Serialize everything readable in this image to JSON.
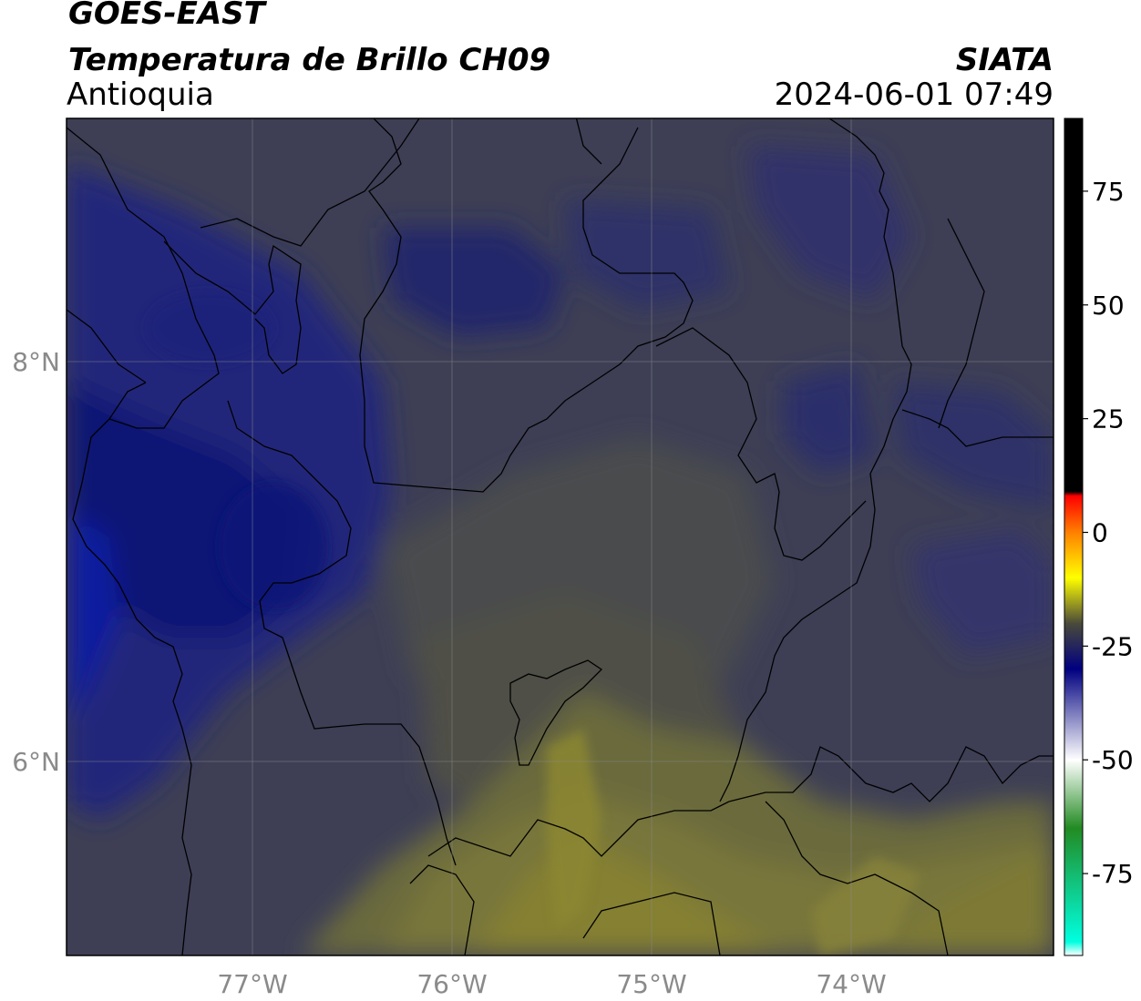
{
  "header": {
    "satellite": "GOES-EAST",
    "product": "Temperatura de Brillo CH09",
    "region": "Antioquia",
    "agency": "SIATA",
    "timestamp": "2024-06-01 07:49"
  },
  "map": {
    "lon_ticks": [
      "77°W",
      "76°W",
      "75°W",
      "74°W"
    ],
    "lat_ticks": [
      "8°N",
      "6°N"
    ]
  },
  "colorbar": {
    "tick_labels": [
      "75",
      "50",
      "25",
      "0",
      "-25",
      "-50",
      "-75"
    ],
    "tick_values": [
      75,
      50,
      25,
      0,
      -25,
      -50,
      -75
    ],
    "range": [
      -93,
      91
    ],
    "stops": [
      {
        "value": 91,
        "color": "#000000"
      },
      {
        "value": 9,
        "color": "#000000"
      },
      {
        "value": 8,
        "color": "#ff0000"
      },
      {
        "value": 0,
        "color": "#ff8000"
      },
      {
        "value": -10,
        "color": "#ffff00"
      },
      {
        "value": -20,
        "color": "#4a4a3a"
      },
      {
        "value": -30,
        "color": "#000080"
      },
      {
        "value": -50,
        "color": "#ffffff"
      },
      {
        "value": -65,
        "color": "#228b22"
      },
      {
        "value": -90,
        "color": "#00ffe0"
      },
      {
        "value": -93,
        "color": "#ffffff"
      }
    ]
  }
}
